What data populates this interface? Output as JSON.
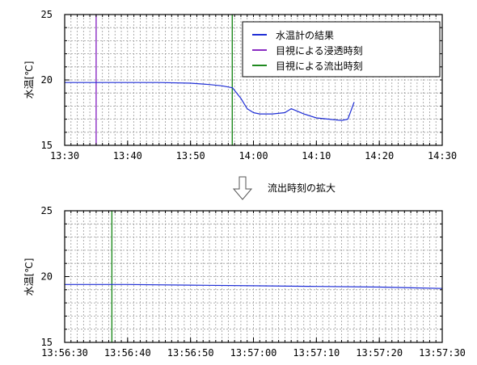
{
  "caption": "流出時刻の拡大",
  "colors": {
    "temp": "#1f2ed6",
    "infiltration": "#8a2bc2",
    "outflow": "#1f8a1f",
    "grid": "#9a9a9a"
  },
  "chart_data": [
    {
      "type": "line",
      "ylabel": "水温[℃]",
      "ylim": [
        15,
        25
      ],
      "yticks": [
        "15",
        "20",
        "25"
      ],
      "xlim_minutes": [
        0,
        60
      ],
      "xticks": [
        "13:30",
        "13:40",
        "13:50",
        "14:00",
        "14:10",
        "14:20",
        "14:30"
      ],
      "legend": {
        "position": "top-right",
        "entries": [
          {
            "label": "水温計の結果",
            "color": "#1f2ed6"
          },
          {
            "label": "目視による浸透時刻",
            "color": "#8a2bc2"
          },
          {
            "label": "目視による流出時刻",
            "color": "#1f8a1f"
          }
        ]
      },
      "vlines": [
        {
          "name": "目視による浸透時刻",
          "x": "13:35",
          "color": "#8a2bc2"
        },
        {
          "name": "目視による流出時刻",
          "x": "13:56:38",
          "color": "#1f8a1f"
        }
      ],
      "series": [
        {
          "name": "水温計の結果",
          "color": "#1f2ed6",
          "x": [
            "13:30",
            "13:35",
            "13:40",
            "13:45",
            "13:50",
            "13:53",
            "13:55",
            "13:56:40",
            "13:58",
            "13:59",
            "14:00",
            "14:01",
            "14:03",
            "14:05",
            "14:06",
            "14:08",
            "14:10",
            "14:12",
            "14:14",
            "14:15",
            "14:16"
          ],
          "y": [
            19.8,
            19.8,
            19.8,
            19.8,
            19.75,
            19.65,
            19.55,
            19.4,
            18.6,
            17.8,
            17.5,
            17.4,
            17.4,
            17.5,
            17.8,
            17.4,
            17.1,
            17.0,
            16.9,
            17.0,
            18.3
          ]
        }
      ]
    },
    {
      "type": "line",
      "ylabel": "水温[℃]",
      "ylim": [
        15,
        25
      ],
      "yticks": [
        "15",
        "20",
        "25"
      ],
      "xlim_seconds": [
        0,
        60
      ],
      "xticks": [
        "13:56:30",
        "13:56:40",
        "13:56:50",
        "13:57:00",
        "13:57:10",
        "13:57:20",
        "13:57:30"
      ],
      "vlines": [
        {
          "name": "目視による流出時刻",
          "x": "13:56:37.5",
          "color": "#1f8a1f"
        }
      ],
      "series": [
        {
          "name": "水温計の結果",
          "color": "#1f2ed6",
          "x": [
            "13:56:30",
            "13:56:40",
            "13:56:50",
            "13:57:00",
            "13:57:10",
            "13:57:20",
            "13:57:30"
          ],
          "y": [
            19.4,
            19.4,
            19.35,
            19.3,
            19.25,
            19.2,
            19.1
          ]
        }
      ]
    }
  ]
}
